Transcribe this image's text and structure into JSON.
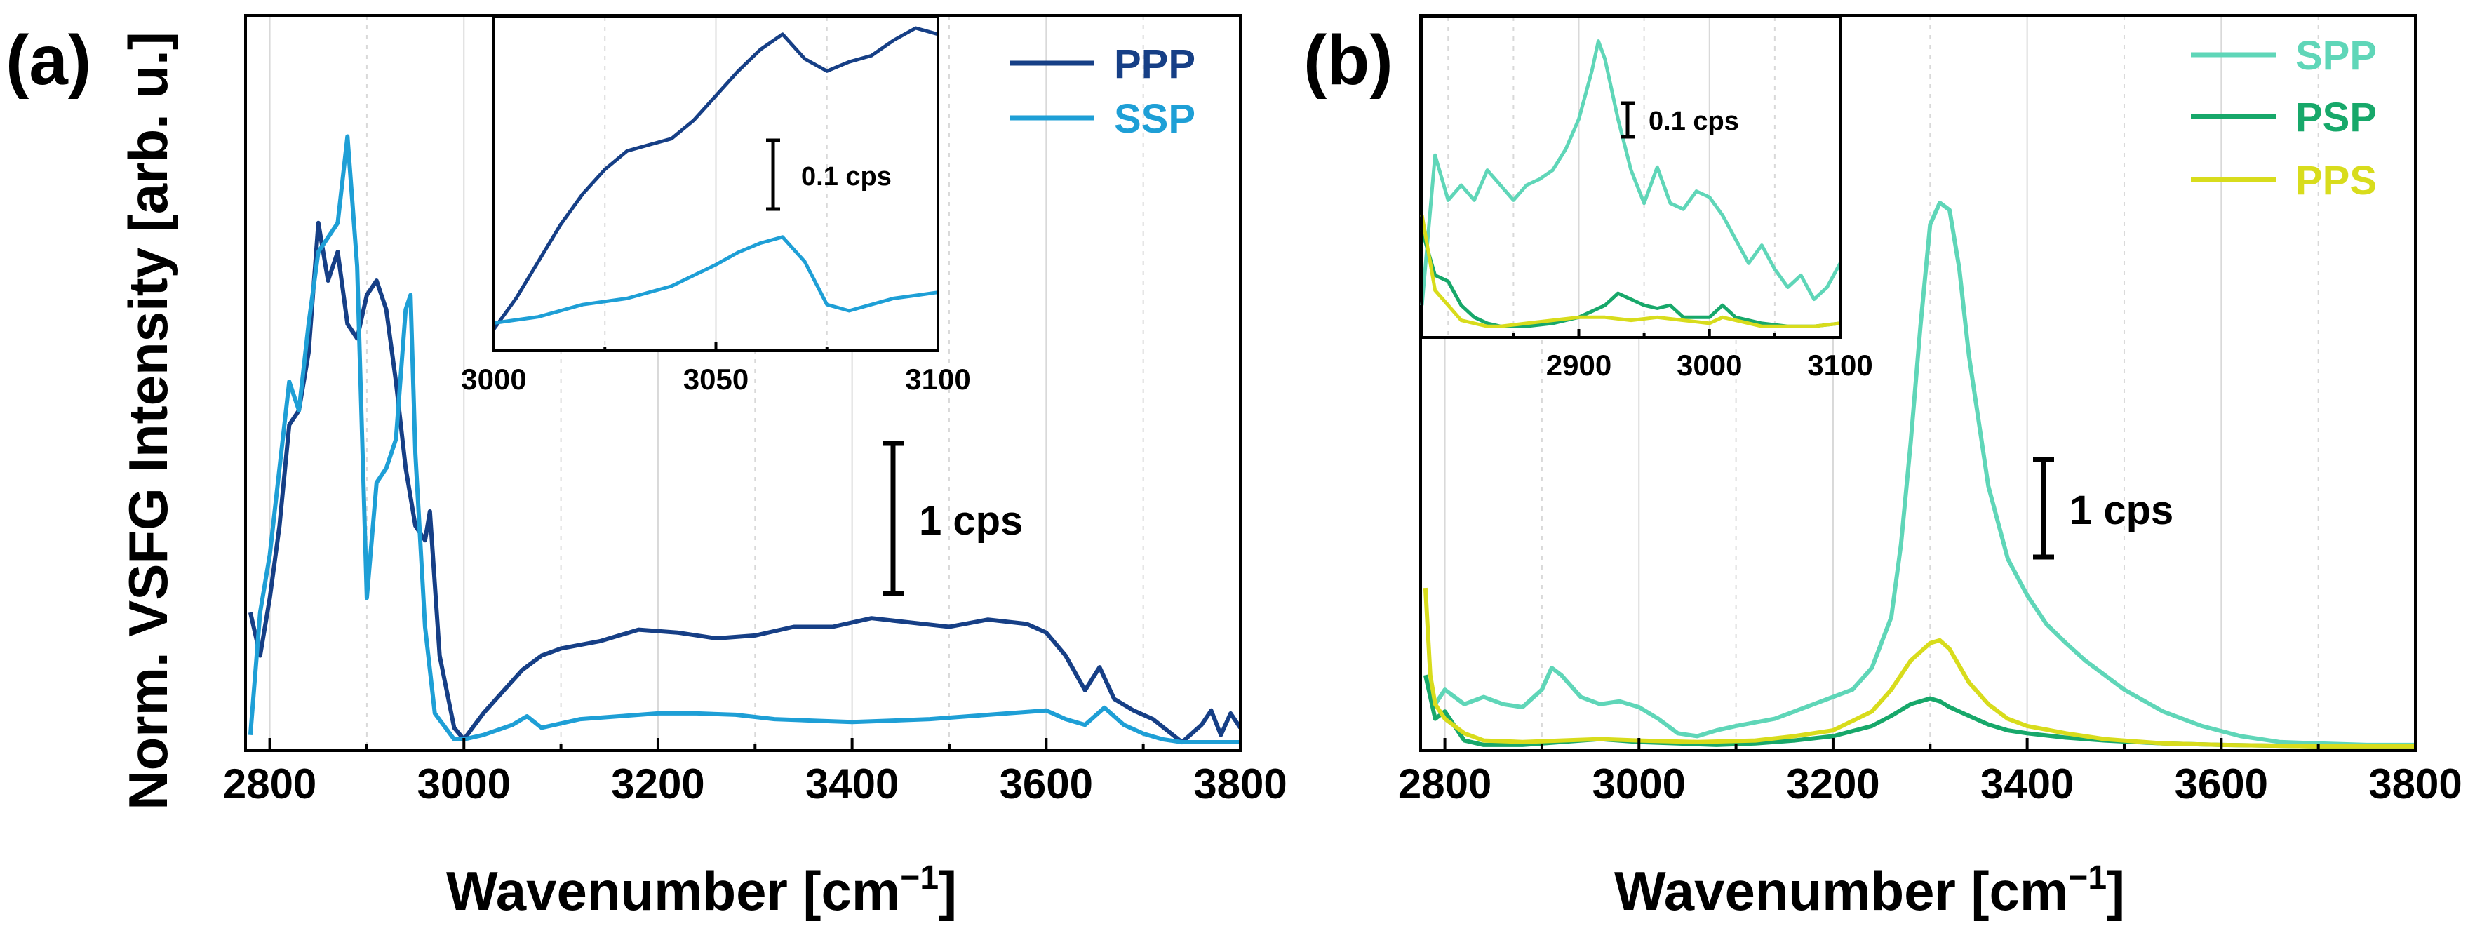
{
  "figure": {
    "panel_a_label": "(a)",
    "panel_b_label": "(b)",
    "y_axis_label": "Norm. VSFG Intensity [arb. u.]",
    "x_axis_label_main": "Wavenumber [cm",
    "x_axis_label_sup": "−1",
    "x_axis_label_end": "]"
  },
  "chart_data": [
    {
      "type": "line",
      "panel": "a",
      "xlabel": "Wavenumber [cm−1]",
      "ylabel": "Norm. VSFG Intensity [arb. u.]",
      "xlim": [
        2775,
        3800
      ],
      "ylim": [
        0,
        5
      ],
      "xticks": [
        2800,
        3000,
        3200,
        3400,
        3600,
        3800
      ],
      "xtick_labels": [
        "2800",
        "3000",
        "3200",
        "3400",
        "3600",
        "3800"
      ],
      "grid": true,
      "legend_position": "top-right",
      "scale_bar": {
        "label": "1 cps",
        "x": 3445,
        "y_low": 1.07,
        "y_high": 2.07
      },
      "series": [
        {
          "name": "PPP",
          "color": "#163f86",
          "x": [
            2780,
            2790,
            2800,
            2810,
            2820,
            2830,
            2840,
            2850,
            2860,
            2870,
            2880,
            2890,
            2900,
            2910,
            2920,
            2930,
            2940,
            2950,
            2960,
            2965,
            2975,
            2990,
            3000,
            3020,
            3040,
            3060,
            3080,
            3100,
            3140,
            3180,
            3220,
            3260,
            3300,
            3340,
            3380,
            3420,
            3460,
            3500,
            3540,
            3580,
            3600,
            3620,
            3640,
            3655,
            3670,
            3690,
            3710,
            3740,
            3760,
            3770,
            3780,
            3790,
            3800
          ],
          "values": [
            0.9,
            0.6,
            1.0,
            1.5,
            2.2,
            2.3,
            2.7,
            3.6,
            3.2,
            3.4,
            2.9,
            2.8,
            3.1,
            3.2,
            3.0,
            2.5,
            1.9,
            1.5,
            1.4,
            1.6,
            0.6,
            0.1,
            0.02,
            0.2,
            0.35,
            0.5,
            0.6,
            0.65,
            0.7,
            0.78,
            0.76,
            0.72,
            0.74,
            0.8,
            0.8,
            0.86,
            0.83,
            0.8,
            0.85,
            0.82,
            0.76,
            0.6,
            0.36,
            0.52,
            0.3,
            0.22,
            0.16,
            0.0,
            0.12,
            0.22,
            0.05,
            0.2,
            0.1
          ]
        },
        {
          "name": "SSP",
          "color": "#1e9fd6",
          "x": [
            2780,
            2790,
            2800,
            2810,
            2820,
            2830,
            2840,
            2850,
            2860,
            2870,
            2880,
            2890,
            2900,
            2910,
            2920,
            2930,
            2940,
            2945,
            2950,
            2960,
            2970,
            2990,
            3000,
            3020,
            3050,
            3065,
            3080,
            3120,
            3160,
            3200,
            3240,
            3280,
            3320,
            3360,
            3400,
            3440,
            3480,
            3520,
            3560,
            3600,
            3620,
            3640,
            3660,
            3680,
            3700,
            3720,
            3740,
            3760,
            3780,
            3800
          ],
          "values": [
            0.05,
            0.9,
            1.3,
            1.9,
            2.5,
            2.3,
            2.9,
            3.4,
            3.5,
            3.6,
            4.2,
            3.3,
            1.0,
            1.8,
            1.9,
            2.1,
            3.0,
            3.1,
            2.0,
            0.8,
            0.2,
            0.02,
            0.02,
            0.05,
            0.12,
            0.18,
            0.1,
            0.16,
            0.18,
            0.2,
            0.2,
            0.19,
            0.16,
            0.15,
            0.14,
            0.15,
            0.16,
            0.18,
            0.2,
            0.22,
            0.16,
            0.12,
            0.24,
            0.12,
            0.06,
            0.02,
            0.0,
            0.0,
            0.0,
            0.0
          ]
        }
      ]
    },
    {
      "type": "line",
      "panel": "a-inset",
      "xlim": [
        3000,
        3100
      ],
      "ylim": [
        0,
        1
      ],
      "xticks": [
        3000,
        3050,
        3100
      ],
      "xtick_labels": [
        "3000",
        "3050",
        "3100"
      ],
      "grid": true,
      "scale_bar": {
        "label": "0.1 cps"
      },
      "series": [
        {
          "name": "PPP",
          "color": "#163f86",
          "x": [
            3000,
            3005,
            3010,
            3015,
            3020,
            3025,
            3030,
            3035,
            3040,
            3045,
            3050,
            3055,
            3060,
            3065,
            3070,
            3075,
            3080,
            3085,
            3090,
            3095,
            3100
          ],
          "values": [
            0.02,
            0.12,
            0.24,
            0.36,
            0.46,
            0.54,
            0.6,
            0.62,
            0.64,
            0.7,
            0.78,
            0.86,
            0.93,
            0.98,
            0.9,
            0.86,
            0.89,
            0.91,
            0.96,
            1.0,
            0.98
          ]
        },
        {
          "name": "SSP",
          "color": "#1e9fd6",
          "x": [
            3000,
            3010,
            3020,
            3030,
            3040,
            3050,
            3055,
            3060,
            3065,
            3070,
            3075,
            3080,
            3085,
            3090,
            3095,
            3100
          ],
          "values": [
            0.04,
            0.06,
            0.1,
            0.12,
            0.16,
            0.23,
            0.27,
            0.3,
            0.32,
            0.24,
            0.1,
            0.08,
            0.1,
            0.12,
            0.13,
            0.14
          ]
        }
      ]
    },
    {
      "type": "line",
      "panel": "b",
      "xlabel": "Wavenumber [cm−1]",
      "xlim": [
        2775,
        3800
      ],
      "ylim": [
        0,
        5
      ],
      "xticks": [
        2800,
        3000,
        3200,
        3400,
        3600,
        3800
      ],
      "xtick_labels": [
        "2800",
        "3000",
        "3200",
        "3400",
        "3600",
        "3800"
      ],
      "grid": true,
      "legend_position": "top-right",
      "scale_bar": {
        "label": "1 cps",
        "x": 3415,
        "y_low": 1.3,
        "y_high": 2.0
      },
      "series": [
        {
          "name": "SPP",
          "color": "#5fd6b8",
          "x": [
            2780,
            2790,
            2800,
            2820,
            2840,
            2860,
            2880,
            2900,
            2910,
            2920,
            2940,
            2960,
            2980,
            3000,
            3020,
            3040,
            3060,
            3080,
            3100,
            3140,
            3180,
            3220,
            3240,
            3260,
            3270,
            3280,
            3290,
            3300,
            3310,
            3320,
            3330,
            3340,
            3360,
            3380,
            3400,
            3420,
            3440,
            3460,
            3500,
            3540,
            3580,
            3620,
            3660,
            3700,
            3750,
            3800
          ],
          "values": [
            0.5,
            0.3,
            0.4,
            0.3,
            0.35,
            0.3,
            0.28,
            0.4,
            0.55,
            0.5,
            0.35,
            0.3,
            0.32,
            0.28,
            0.2,
            0.1,
            0.08,
            0.12,
            0.15,
            0.2,
            0.3,
            0.4,
            0.55,
            0.9,
            1.4,
            2.1,
            2.9,
            3.6,
            3.75,
            3.7,
            3.3,
            2.7,
            1.8,
            1.3,
            1.05,
            0.85,
            0.72,
            0.6,
            0.4,
            0.25,
            0.15,
            0.08,
            0.04,
            0.03,
            0.02,
            0.02
          ]
        },
        {
          "name": "PSP",
          "color": "#17a86a",
          "x": [
            2780,
            2790,
            2800,
            2810,
            2820,
            2840,
            2880,
            2920,
            2960,
            3000,
            3040,
            3080,
            3120,
            3160,
            3200,
            3240,
            3260,
            3280,
            3300,
            3310,
            3320,
            3340,
            3360,
            3380,
            3400,
            3440,
            3480,
            3540,
            3600,
            3700,
            3800
          ],
          "values": [
            0.5,
            0.2,
            0.25,
            0.15,
            0.05,
            0.02,
            0.02,
            0.04,
            0.06,
            0.04,
            0.03,
            0.02,
            0.03,
            0.05,
            0.08,
            0.15,
            0.22,
            0.3,
            0.34,
            0.32,
            0.28,
            0.22,
            0.16,
            0.12,
            0.1,
            0.07,
            0.05,
            0.03,
            0.02,
            0.01,
            0.01
          ]
        },
        {
          "name": "PPS",
          "color": "#d8dc1c",
          "x": [
            2780,
            2785,
            2790,
            2800,
            2810,
            2820,
            2840,
            2880,
            2920,
            2960,
            3000,
            3060,
            3120,
            3160,
            3200,
            3240,
            3260,
            3280,
            3300,
            3310,
            3320,
            3340,
            3360,
            3380,
            3400,
            3440,
            3480,
            3540,
            3600,
            3700,
            3800
          ],
          "values": [
            1.1,
            0.5,
            0.3,
            0.2,
            0.15,
            0.1,
            0.05,
            0.04,
            0.05,
            0.06,
            0.05,
            0.04,
            0.05,
            0.08,
            0.12,
            0.25,
            0.4,
            0.6,
            0.72,
            0.74,
            0.68,
            0.45,
            0.3,
            0.2,
            0.15,
            0.1,
            0.06,
            0.03,
            0.02,
            0.01,
            0.01
          ]
        }
      ]
    },
    {
      "type": "line",
      "panel": "b-inset",
      "xlim": [
        2780,
        3100
      ],
      "ylim": [
        0,
        1
      ],
      "xticks": [
        2900,
        3000,
        3100
      ],
      "xtick_labels": [
        "2900",
        "3000",
        "3100"
      ],
      "grid": true,
      "scale_bar": {
        "label": "0.1 cps"
      },
      "series": [
        {
          "name": "SPP",
          "color": "#5fd6b8",
          "x": [
            2780,
            2790,
            2800,
            2810,
            2820,
            2830,
            2840,
            2850,
            2860,
            2870,
            2880,
            2890,
            2900,
            2910,
            2915,
            2920,
            2930,
            2940,
            2950,
            2960,
            2970,
            2980,
            2990,
            3000,
            3010,
            3020,
            3030,
            3040,
            3050,
            3060,
            3070,
            3080,
            3090,
            3100
          ],
          "values": [
            0.1,
            0.6,
            0.45,
            0.5,
            0.45,
            0.55,
            0.5,
            0.45,
            0.5,
            0.52,
            0.55,
            0.62,
            0.72,
            0.88,
            0.98,
            0.92,
            0.72,
            0.55,
            0.44,
            0.56,
            0.44,
            0.42,
            0.48,
            0.46,
            0.4,
            0.32,
            0.24,
            0.3,
            0.22,
            0.16,
            0.2,
            0.12,
            0.16,
            0.24
          ]
        },
        {
          "name": "PSP",
          "color": "#17a86a",
          "x": [
            2780,
            2790,
            2800,
            2810,
            2820,
            2830,
            2840,
            2860,
            2880,
            2900,
            2920,
            2930,
            2940,
            2950,
            2960,
            2970,
            2980,
            3000,
            3010,
            3020,
            3040,
            3060,
            3080,
            3100
          ],
          "values": [
            0.35,
            0.2,
            0.18,
            0.1,
            0.06,
            0.04,
            0.03,
            0.03,
            0.04,
            0.06,
            0.1,
            0.14,
            0.12,
            0.1,
            0.09,
            0.1,
            0.06,
            0.06,
            0.1,
            0.06,
            0.04,
            0.03,
            0.03,
            0.04
          ]
        },
        {
          "name": "PPS",
          "color": "#d8dc1c",
          "x": [
            2780,
            2790,
            2800,
            2810,
            2820,
            2830,
            2840,
            2860,
            2880,
            2900,
            2920,
            2940,
            2960,
            2980,
            3000,
            3010,
            3020,
            3040,
            3060,
            3080,
            3100
          ],
          "values": [
            0.4,
            0.15,
            0.1,
            0.05,
            0.04,
            0.03,
            0.03,
            0.04,
            0.05,
            0.06,
            0.06,
            0.05,
            0.06,
            0.05,
            0.04,
            0.06,
            0.05,
            0.03,
            0.03,
            0.03,
            0.04
          ]
        }
      ]
    }
  ]
}
